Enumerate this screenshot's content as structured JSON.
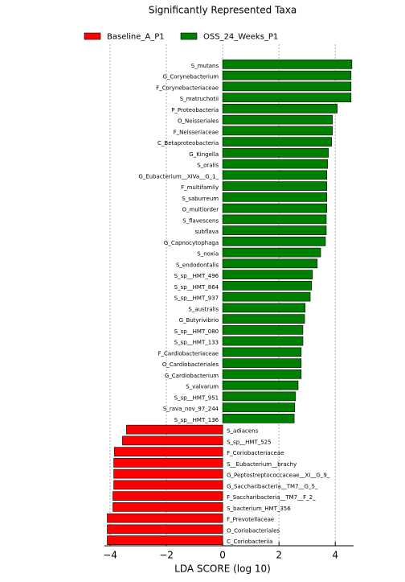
{
  "chart_data": {
    "type": "bar",
    "orientation": "horizontal",
    "title": "Significantly Represented Taxa",
    "x_label": "LDA SCORE (log 10)",
    "categories": [
      "S_mutans",
      "G_Corynebacterium",
      "F_Corynebacteriaceae",
      "S_matruchotii",
      "P_Proteobacteria",
      "O_Neisseriales",
      "F_Neisseriaceae",
      "C_Betaproteobacteria",
      "G_Kingella",
      "S_oralis",
      "G_Eubacterium__XIVa__G_1_",
      "F_multifamily",
      "S_saburreum",
      "O_multiorder",
      "S_flavescens",
      "subflava",
      "G_Capnocytophaga",
      "S_noxia",
      "S_endodontalis",
      "S_sp__HMT_496",
      "S_sp__HMT_864",
      "S_sp__HMT_937",
      "S_australis",
      "G_Butyrivibrio",
      "S_sp__HMT_080",
      "S_sp__HMT_133",
      "F_Cardiobacteriaceae",
      "O_Cardiobacteriales",
      "G_Cardiobacterium",
      "S_valvarum",
      "S_sp__HMT_951",
      "S_rava_nov_97_244",
      "S_sp__HMT_136",
      "S_adiacens",
      "S_sp__HMT_525",
      "F_Coriobacteriaceae",
      "S__Eubacterium__brachy",
      "G_Peptostreptococcaceae__XI__G_9_",
      "G_Saccharibacteria__TM7__G_5_",
      "F_Saccharibacteria__TM7__F_2_",
      "S_bacterium_HMT_356",
      "F_Prevotellaceae",
      "O_Coriobacteriales",
      "C_Coriobacteriia"
    ],
    "series": [
      {
        "name": "Baseline_A_P1",
        "color": "#ff0000",
        "values": [
          null,
          null,
          null,
          null,
          null,
          null,
          null,
          null,
          null,
          null,
          null,
          null,
          null,
          null,
          null,
          null,
          null,
          null,
          null,
          null,
          null,
          null,
          null,
          null,
          null,
          null,
          null,
          null,
          null,
          null,
          null,
          null,
          null,
          -3.42,
          -3.56,
          -3.85,
          -3.87,
          -3.87,
          -3.87,
          -3.9,
          -3.9,
          -4.1,
          -4.1,
          -4.1
        ]
      },
      {
        "name": "OSS_24_Weeks_P1",
        "color": "#008000",
        "values": [
          4.59,
          4.56,
          4.56,
          4.56,
          4.07,
          3.9,
          3.9,
          3.87,
          3.76,
          3.73,
          3.7,
          3.7,
          3.7,
          3.7,
          3.68,
          3.68,
          3.65,
          3.48,
          3.36,
          3.19,
          3.16,
          3.11,
          2.93,
          2.91,
          2.85,
          2.85,
          2.79,
          2.79,
          2.79,
          2.68,
          2.59,
          2.56,
          2.54,
          null,
          null,
          null,
          null,
          null,
          null,
          null,
          null,
          null,
          null,
          null
        ]
      }
    ],
    "xlim": [
      -4.2,
      4.65
    ],
    "xticks": [
      {
        "value": -4,
        "label": "−4"
      },
      {
        "value": -2,
        "label": "−2"
      },
      0,
      2,
      4
    ],
    "grid": true
  }
}
